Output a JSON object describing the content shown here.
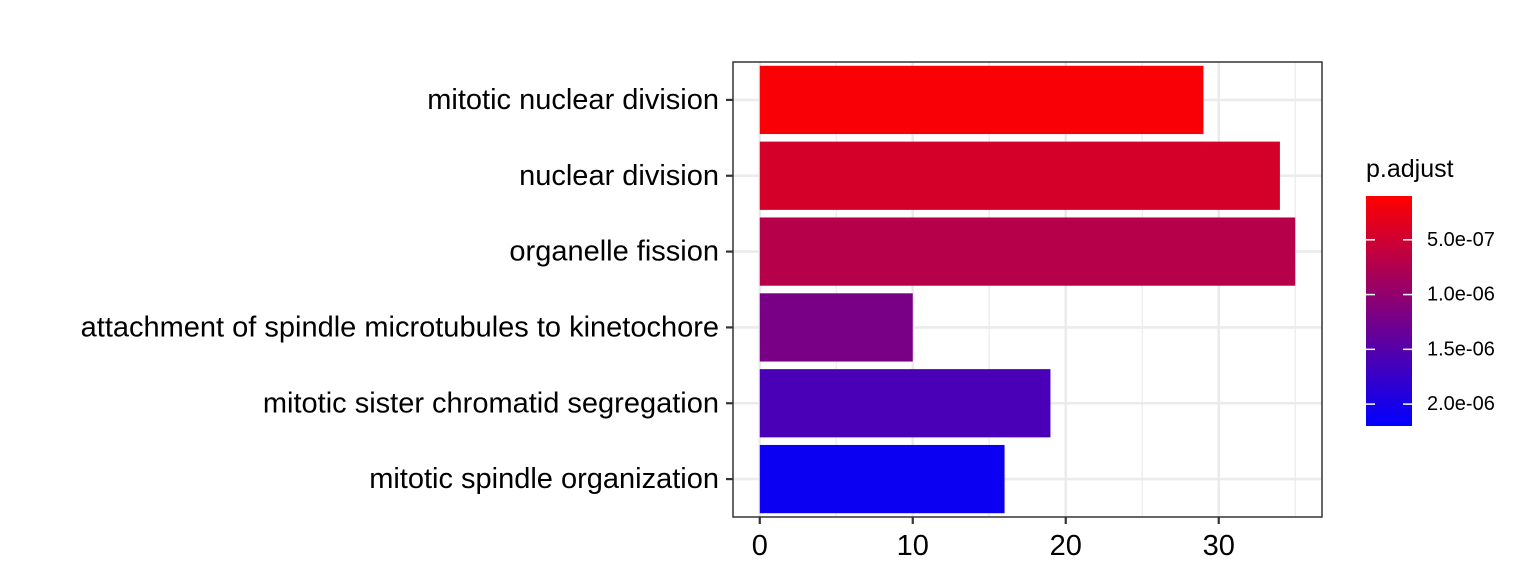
{
  "chart_data": {
    "type": "bar",
    "orientation": "horizontal",
    "title": "",
    "xlabel": "",
    "ylabel": "",
    "categories": [
      "mitotic nuclear division",
      "nuclear division",
      "organelle fission",
      "attachment of spindle microtubules to kinetochore",
      "mitotic sister chromatid segregation",
      "mitotic spindle organization"
    ],
    "values": [
      29,
      34,
      35,
      10,
      19,
      16
    ],
    "p_adjust": [
      1.5e-07,
      4.5e-07,
      7e-07,
      1.2e-06,
      1.6e-06,
      2.1e-06
    ],
    "xlim": [
      -1.75,
      36.75
    ],
    "x_ticks": [
      0,
      10,
      20,
      30
    ],
    "x_tick_labels": [
      "0",
      "10",
      "20",
      "30"
    ],
    "grid": true,
    "legend": {
      "title": "p.adjust",
      "position": "right",
      "gradient": {
        "low_color": "#FF0000",
        "high_color": "#0000FF"
      },
      "range": [
        1e-07,
        2.2e-06
      ],
      "ticks": [
        5e-07,
        1e-06,
        1.5e-06,
        2e-06
      ],
      "tick_labels": [
        "5.0e-07",
        "1.0e-06",
        "1.5e-06",
        "2.0e-06"
      ]
    }
  }
}
